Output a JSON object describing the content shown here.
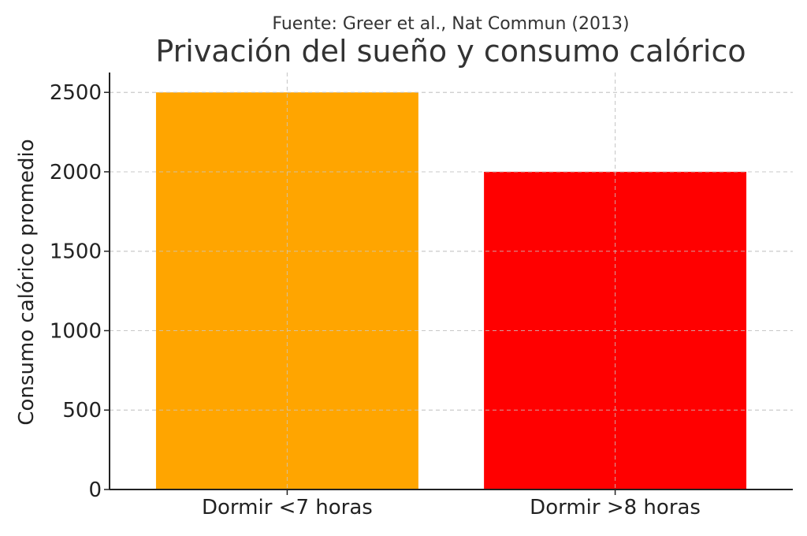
{
  "chart_data": {
    "type": "bar",
    "subtitle": "Fuente: Greer et al., Nat Commun (2013)",
    "title": "Privación del sueño y consumo calórico",
    "xlabel": "",
    "ylabel": "Consumo calórico promedio",
    "categories": [
      "Dormir <7 horas",
      "Dormir >8 horas"
    ],
    "values": [
      2500,
      2000
    ],
    "bar_colors": [
      "#ffa500",
      "#ff0000"
    ],
    "ylim": [
      0,
      2625
    ],
    "yticks": [
      0,
      500,
      1000,
      1500,
      2000,
      2500
    ],
    "grid": true,
    "legend": "none"
  }
}
